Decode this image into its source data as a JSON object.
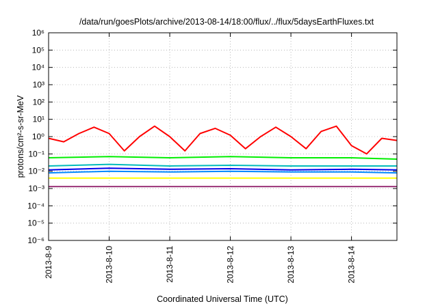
{
  "chart_data": {
    "type": "line",
    "title": "/data/run/goesPlots/archive/2013-08-14/18:00/flux/../flux/5daysEarthFluxes.txt",
    "xlabel": "Coordinated Universal Time (UTC)",
    "ylabel": "protons/cm²-s-sr-MeV",
    "y_scale": "log",
    "ylim": [
      1e-06,
      1000000.0
    ],
    "y_ticks": [
      {
        "value": -6,
        "label": "10⁻⁶"
      },
      {
        "value": -5,
        "label": "10⁻⁵"
      },
      {
        "value": -4,
        "label": "10⁻⁴"
      },
      {
        "value": -3,
        "label": "10⁻³"
      },
      {
        "value": -2,
        "label": "10⁻²"
      },
      {
        "value": -1,
        "label": "10⁻¹"
      },
      {
        "value": 0,
        "label": "10⁰"
      },
      {
        "value": 1,
        "label": "10¹"
      },
      {
        "value": 2,
        "label": "10²"
      },
      {
        "value": 3,
        "label": "10³"
      },
      {
        "value": 4,
        "label": "10⁴"
      },
      {
        "value": 5,
        "label": "10⁵"
      },
      {
        "value": 6,
        "label": "10⁶"
      }
    ],
    "xlim": [
      "2013-08-09",
      "2013-08-14 18:00"
    ],
    "x_ticks": [
      "2013-8-9",
      "2013-8-10",
      "2013-8-11",
      "2013-8-12",
      "2013-8-13",
      "2013-8-14"
    ],
    "grid": true,
    "series": [
      {
        "color": "#ff0000",
        "x": [
          "2013-08-09 00:00",
          "2013-08-09 06:00",
          "2013-08-09 12:00",
          "2013-08-09 18:00",
          "2013-08-10 00:00",
          "2013-08-10 06:00",
          "2013-08-10 12:00",
          "2013-08-10 18:00",
          "2013-08-11 00:00",
          "2013-08-11 06:00",
          "2013-08-11 12:00",
          "2013-08-11 18:00",
          "2013-08-12 00:00",
          "2013-08-12 06:00",
          "2013-08-12 12:00",
          "2013-08-12 18:00",
          "2013-08-13 00:00",
          "2013-08-13 06:00",
          "2013-08-13 12:00",
          "2013-08-13 18:00",
          "2013-08-14 00:00",
          "2013-08-14 06:00",
          "2013-08-14 12:00",
          "2013-08-14 18:00"
        ],
        "values": [
          0.8,
          0.5,
          1.5,
          3.5,
          1.5,
          0.15,
          1.0,
          4.0,
          1.0,
          0.15,
          1.5,
          3.0,
          1.2,
          0.2,
          1.0,
          3.5,
          1.0,
          0.2,
          2.0,
          4.0,
          0.3,
          0.1,
          0.8,
          0.6
        ]
      },
      {
        "color": "#00ee00",
        "x": [
          "2013-08-09 00:00",
          "2013-08-10 00:00",
          "2013-08-11 00:00",
          "2013-08-12 00:00",
          "2013-08-13 00:00",
          "2013-08-14 00:00",
          "2013-08-14 18:00"
        ],
        "values": [
          0.06,
          0.07,
          0.06,
          0.07,
          0.06,
          0.06,
          0.05
        ]
      },
      {
        "color": "#00bbbb",
        "x": [
          "2013-08-09 00:00",
          "2013-08-10 00:00",
          "2013-08-11 00:00",
          "2013-08-12 00:00",
          "2013-08-13 00:00",
          "2013-08-14 00:00",
          "2013-08-14 18:00"
        ],
        "values": [
          0.02,
          0.025,
          0.02,
          0.022,
          0.02,
          0.02,
          0.02
        ]
      },
      {
        "color": "#0000ee",
        "x": [
          "2013-08-09 00:00",
          "2013-08-10 00:00",
          "2013-08-11 00:00",
          "2013-08-12 00:00",
          "2013-08-13 00:00",
          "2013-08-14 00:00",
          "2013-08-14 18:00"
        ],
        "values": [
          0.012,
          0.015,
          0.013,
          0.014,
          0.012,
          0.013,
          0.012
        ]
      },
      {
        "color": "#0088ff",
        "x": [
          "2013-08-09 00:00",
          "2013-08-10 00:00",
          "2013-08-11 00:00",
          "2013-08-12 00:00",
          "2013-08-13 00:00",
          "2013-08-14 00:00",
          "2013-08-14 18:00"
        ],
        "values": [
          0.008,
          0.01,
          0.009,
          0.01,
          0.009,
          0.009,
          0.008
        ]
      },
      {
        "color": "#ffff00",
        "x": [
          "2013-08-09 00:00",
          "2013-08-10 00:00",
          "2013-08-11 00:00",
          "2013-08-12 00:00",
          "2013-08-13 00:00",
          "2013-08-14 00:00",
          "2013-08-14 18:00"
        ],
        "values": [
          0.004,
          0.004,
          0.004,
          0.004,
          0.004,
          0.004,
          0.004
        ]
      },
      {
        "color": "#993377",
        "x": [
          "2013-08-09 00:00",
          "2013-08-10 00:00",
          "2013-08-11 00:00",
          "2013-08-12 00:00",
          "2013-08-13 00:00",
          "2013-08-14 00:00",
          "2013-08-14 18:00"
        ],
        "values": [
          0.0013,
          0.0013,
          0.0013,
          0.0013,
          0.0013,
          0.0013,
          0.0013
        ]
      }
    ]
  }
}
